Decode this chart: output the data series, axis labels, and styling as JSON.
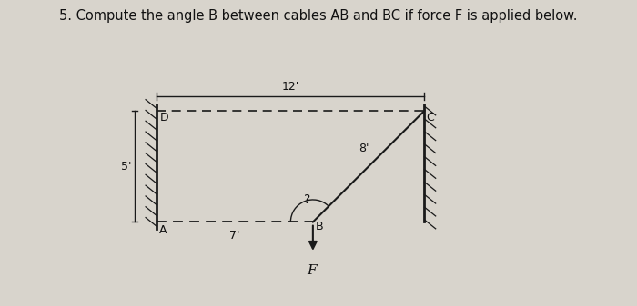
{
  "title": "5. Compute the angle B between cables AB and BC if force F is applied below.",
  "title_fontsize": 10.5,
  "bg_color": "#d8d4cc",
  "line_color": "#1a1a1a",
  "label_color": "#111111",
  "D": [
    0.0,
    0.0
  ],
  "C": [
    12.0,
    0.0
  ],
  "A": [
    0.0,
    -5.0
  ],
  "B": [
    7.0,
    -5.0
  ],
  "dim_12_label": "12'",
  "dim_5_label": "5'",
  "dim_7_label": "7'",
  "dim_8_label": "8'",
  "angle_label": "?",
  "F_label": "F",
  "figsize": [
    7.0,
    3.37
  ],
  "dpi": 100
}
